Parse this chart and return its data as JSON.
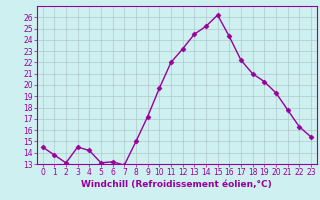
{
  "x": [
    0,
    1,
    2,
    3,
    4,
    5,
    6,
    7,
    8,
    9,
    10,
    11,
    12,
    13,
    14,
    15,
    16,
    17,
    18,
    19,
    20,
    21,
    22,
    23
  ],
  "y": [
    14.5,
    13.8,
    13.1,
    14.5,
    14.2,
    13.1,
    13.2,
    12.9,
    15.0,
    17.2,
    19.7,
    22.0,
    23.2,
    24.5,
    25.2,
    26.2,
    24.3,
    22.2,
    21.0,
    20.3,
    19.3,
    17.8,
    16.3,
    15.4
  ],
  "line_color": "#990099",
  "marker": "D",
  "marker_size": 2.5,
  "linewidth": 1.0,
  "bg_color": "#cef0f0",
  "grid_color": "#b0c8c8",
  "xlabel": "Windchill (Refroidissement éolien,°C)",
  "ylim": [
    13,
    27
  ],
  "xlim": [
    -0.5,
    23.5
  ],
  "yticks": [
    13,
    14,
    15,
    16,
    17,
    18,
    19,
    20,
    21,
    22,
    23,
    24,
    25,
    26
  ],
  "xticks": [
    0,
    1,
    2,
    3,
    4,
    5,
    6,
    7,
    8,
    9,
    10,
    11,
    12,
    13,
    14,
    15,
    16,
    17,
    18,
    19,
    20,
    21,
    22,
    23
  ],
  "xlabel_fontsize": 6.5,
  "tick_fontsize": 5.5
}
